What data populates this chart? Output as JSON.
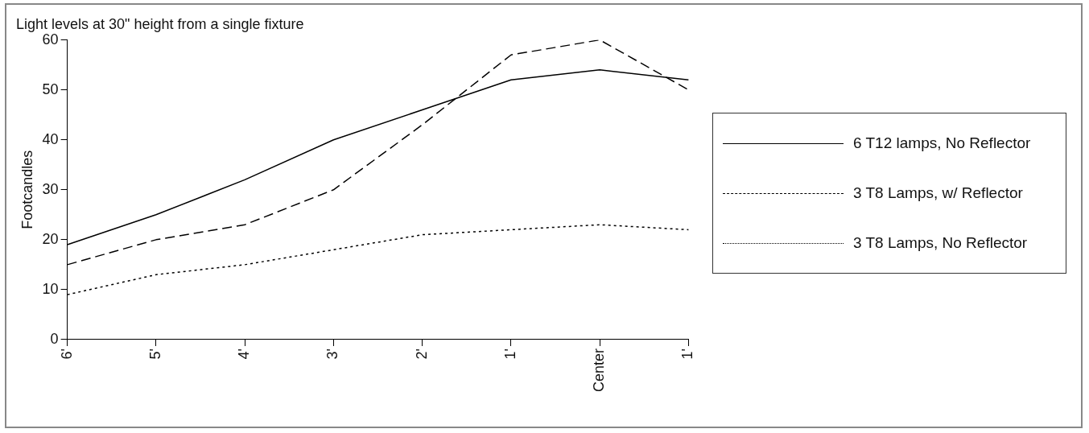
{
  "chart_data": {
    "type": "line",
    "title": "Light levels at 30\" height from a single fixture",
    "ylabel": "Footcandles",
    "categories": [
      "6'",
      "5'",
      "4'",
      "3'",
      "2'",
      "1'",
      "Center",
      "1'"
    ],
    "series": [
      {
        "name": "6 T12 lamps, No Reflector",
        "color": "#000000",
        "line_style": "solid",
        "values": [
          19,
          25,
          32,
          40,
          46,
          52,
          54,
          52
        ]
      },
      {
        "name": "3 T8 Lamps, w/ Reflector",
        "color": "#000000",
        "line_style": "dashed",
        "values": [
          15,
          20,
          23,
          30,
          43,
          57,
          60,
          50
        ]
      },
      {
        "name": "3 T8 Lamps, No Reflector",
        "color": "#000000",
        "line_style": "dotted",
        "values": [
          9,
          13,
          15,
          18,
          21,
          22,
          23,
          22
        ]
      }
    ],
    "ylim": [
      0,
      60
    ],
    "yticks": [
      0,
      10,
      20,
      30,
      40,
      50,
      60
    ],
    "grid": false,
    "legend": "right",
    "marker": "none"
  }
}
